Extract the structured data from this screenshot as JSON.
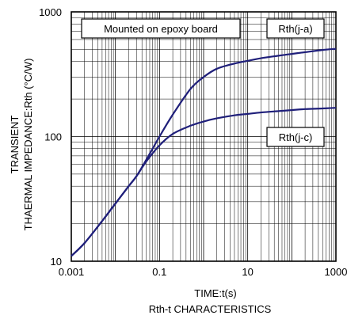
{
  "chart_data": {
    "type": "line",
    "title": "Rth-t CHARACTERISTICS",
    "xlabel": "TIME:t(s)",
    "ylabel_line1": "TRANSIENT",
    "ylabel_line2": "THAERMAL IMPEDANCE:Rth (°C/W)",
    "x_scale": "log",
    "y_scale": "log",
    "xlim": [
      0.001,
      1000
    ],
    "ylim": [
      10,
      1000
    ],
    "x_ticks": [
      {
        "value": 0.001,
        "label": "0.001"
      },
      {
        "value": 0.1,
        "label": "0.1"
      },
      {
        "value": 10,
        "label": "10"
      },
      {
        "value": 1000,
        "label": "1000"
      }
    ],
    "y_ticks": [
      {
        "value": 10,
        "label": "10"
      },
      {
        "value": 100,
        "label": "100"
      },
      {
        "value": 1000,
        "label": "1000"
      }
    ],
    "grid": "log-minor",
    "note": "Mounted on epoxy board",
    "line_color": "#1f1f7a",
    "series": [
      {
        "name": "Rth(j-a)",
        "x": [
          0.001,
          0.002,
          0.005,
          0.01,
          0.02,
          0.03,
          0.05,
          0.1,
          0.2,
          0.5,
          1,
          2,
          5,
          10,
          20,
          50,
          100,
          200,
          500,
          1000
        ],
        "y": [
          11,
          14,
          21,
          29,
          40,
          48,
          65,
          100,
          150,
          240,
          300,
          350,
          385,
          405,
          425,
          445,
          460,
          475,
          495,
          505
        ]
      },
      {
        "name": "Rth(j-c)",
        "x": [
          0.001,
          0.002,
          0.005,
          0.01,
          0.02,
          0.03,
          0.05,
          0.1,
          0.2,
          0.5,
          1,
          2,
          5,
          10,
          20,
          50,
          100,
          200,
          500,
          1000
        ],
        "y": [
          11,
          14,
          21,
          29,
          40,
          48,
          63,
          85,
          105,
          122,
          132,
          140,
          148,
          152,
          156,
          160,
          163,
          166,
          168,
          170
        ]
      }
    ]
  }
}
